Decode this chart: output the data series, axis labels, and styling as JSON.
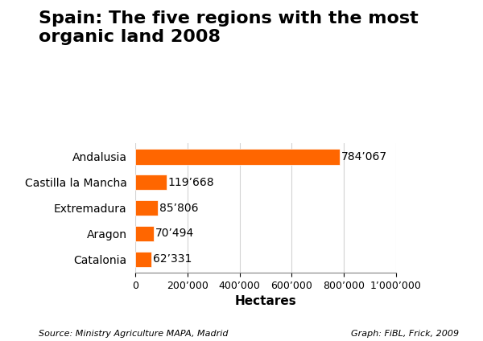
{
  "title": "Spain: The five regions with the most\norganic land 2008",
  "categories": [
    "Catalonia",
    "Aragon",
    "Extremadura",
    "Castilla la Mancha",
    "Andalusia"
  ],
  "values": [
    62331,
    70494,
    85806,
    119668,
    784067
  ],
  "labels": [
    "62’331",
    "70’494",
    "85’806",
    "119’668",
    "784’067"
  ],
  "bar_color": "#FF6600",
  "xlabel": "Hectares",
  "xlim": [
    0,
    1000000
  ],
  "xticks": [
    0,
    200000,
    400000,
    600000,
    800000,
    1000000
  ],
  "xticklabels": [
    "0",
    "200’000",
    "400’000",
    "600’000",
    "800’000",
    "1’000’000"
  ],
  "source_left": "Source: Ministry Agriculture MAPA, Madrid",
  "source_right": "Graph: FiBL, Frick, 2009",
  "background_color": "#ffffff",
  "title_fontsize": 16,
  "label_fontsize": 10,
  "tick_fontsize": 9,
  "xlabel_fontsize": 11,
  "source_fontsize": 8,
  "value_label_fontsize": 10
}
